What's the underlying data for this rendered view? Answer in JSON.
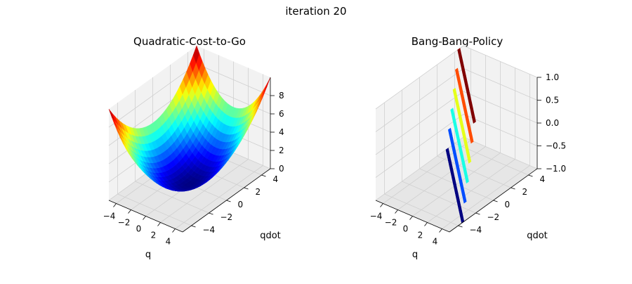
{
  "figure": {
    "suptitle": "iteration 20"
  },
  "chart_data": [
    {
      "type": "surface3d",
      "title": "Quadratic-Cost-to-Go",
      "xlabel": "q",
      "ylabel": "qdot",
      "zlabel": "",
      "xlim": [
        -5,
        5
      ],
      "ylim": [
        -5,
        5
      ],
      "zlim": [
        0,
        10
      ],
      "xticks": [
        -4,
        -2,
        0,
        2,
        4
      ],
      "yticks": [
        -4,
        -2,
        0,
        2,
        4
      ],
      "zticks": [
        0,
        2,
        4,
        6,
        8
      ],
      "tick_labels": {
        "x": [
          "−4",
          "−2",
          "0",
          "2",
          "4"
        ],
        "y": [
          "−4",
          "−2",
          "0",
          "2",
          "4"
        ],
        "z": [
          "0",
          "2",
          "4",
          "6",
          "8"
        ]
      },
      "function": "J = 0.2*q^2 + 0.2*qdot^2",
      "corner_values": {
        "q=-5,qdot=-5": 10,
        "q=5,qdot=5": 10,
        "q=-5,qdot=5": 10,
        "q=5,qdot=-5": 10,
        "q=0,qdot=0": 0
      },
      "colormap": "jet",
      "grid": true
    },
    {
      "type": "surface3d",
      "title": "Bang-Bang-Policy",
      "xlabel": "q",
      "ylabel": "qdot",
      "zlabel": "",
      "xlim": [
        -5,
        5
      ],
      "ylim": [
        -5,
        5
      ],
      "zlim": [
        -1,
        1
      ],
      "xticks": [
        -4,
        -2,
        0,
        2,
        4
      ],
      "yticks": [
        -4,
        -2,
        0,
        2,
        4
      ],
      "zticks": [
        -1.0,
        -0.5,
        0.0,
        0.5,
        1.0
      ],
      "tick_labels": {
        "x": [
          "−4",
          "−2",
          "0",
          "2",
          "4"
        ],
        "y": [
          "−4",
          "−2",
          "0",
          "2",
          "4"
        ],
        "z": [
          "−1.0",
          "−0.5",
          "0.0",
          "0.5",
          "1.0"
        ]
      },
      "function": "u = +1 along switching band low q/qdot, -1 toward high q/qdot",
      "levels": [
        1.0,
        0.6,
        0.2,
        -0.2,
        -0.6,
        -1.0
      ],
      "colormap": "jet",
      "grid": true
    }
  ],
  "colors": {
    "pane": "#f2f2f2",
    "pane_side": "#e6e6e6",
    "grid": "#d0d0d0",
    "axis": "#000000"
  }
}
